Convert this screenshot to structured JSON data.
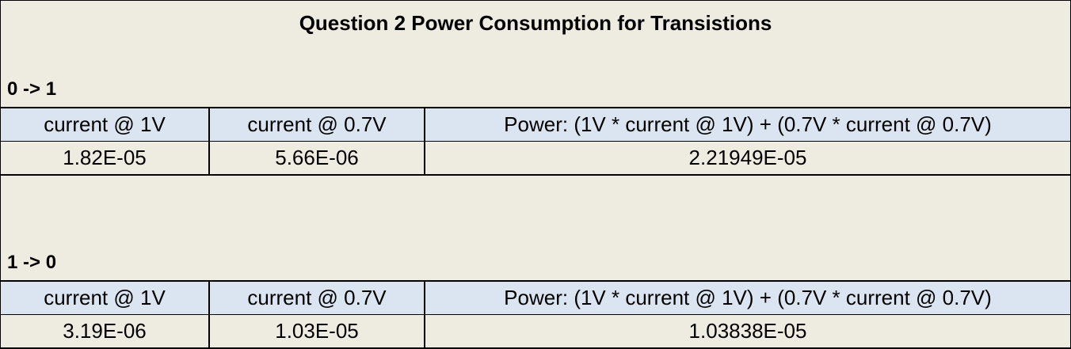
{
  "title": "Question 2 Power Consumption for Transistions",
  "sections": [
    {
      "label": "0 -> 1",
      "headers": [
        "current @ 1V",
        "current @ 0.7V",
        "Power: (1V * current @ 1V) + (0.7V * current @ 0.7V)"
      ],
      "values": [
        "1.82E-05",
        "5.66E-06",
        "2.21949E-05"
      ]
    },
    {
      "label": "1 -> 0",
      "headers": [
        "current @ 1V",
        "current @ 0.7V",
        "Power: (1V * current @ 1V) + (0.7V * current @ 0.7V)"
      ],
      "values": [
        "3.19E-06",
        "1.03E-05",
        "1.03838E-05"
      ]
    }
  ],
  "colors": {
    "header_fill": "#dbe5f1",
    "sheet_fill": "#eeece1",
    "border": "#000000"
  }
}
